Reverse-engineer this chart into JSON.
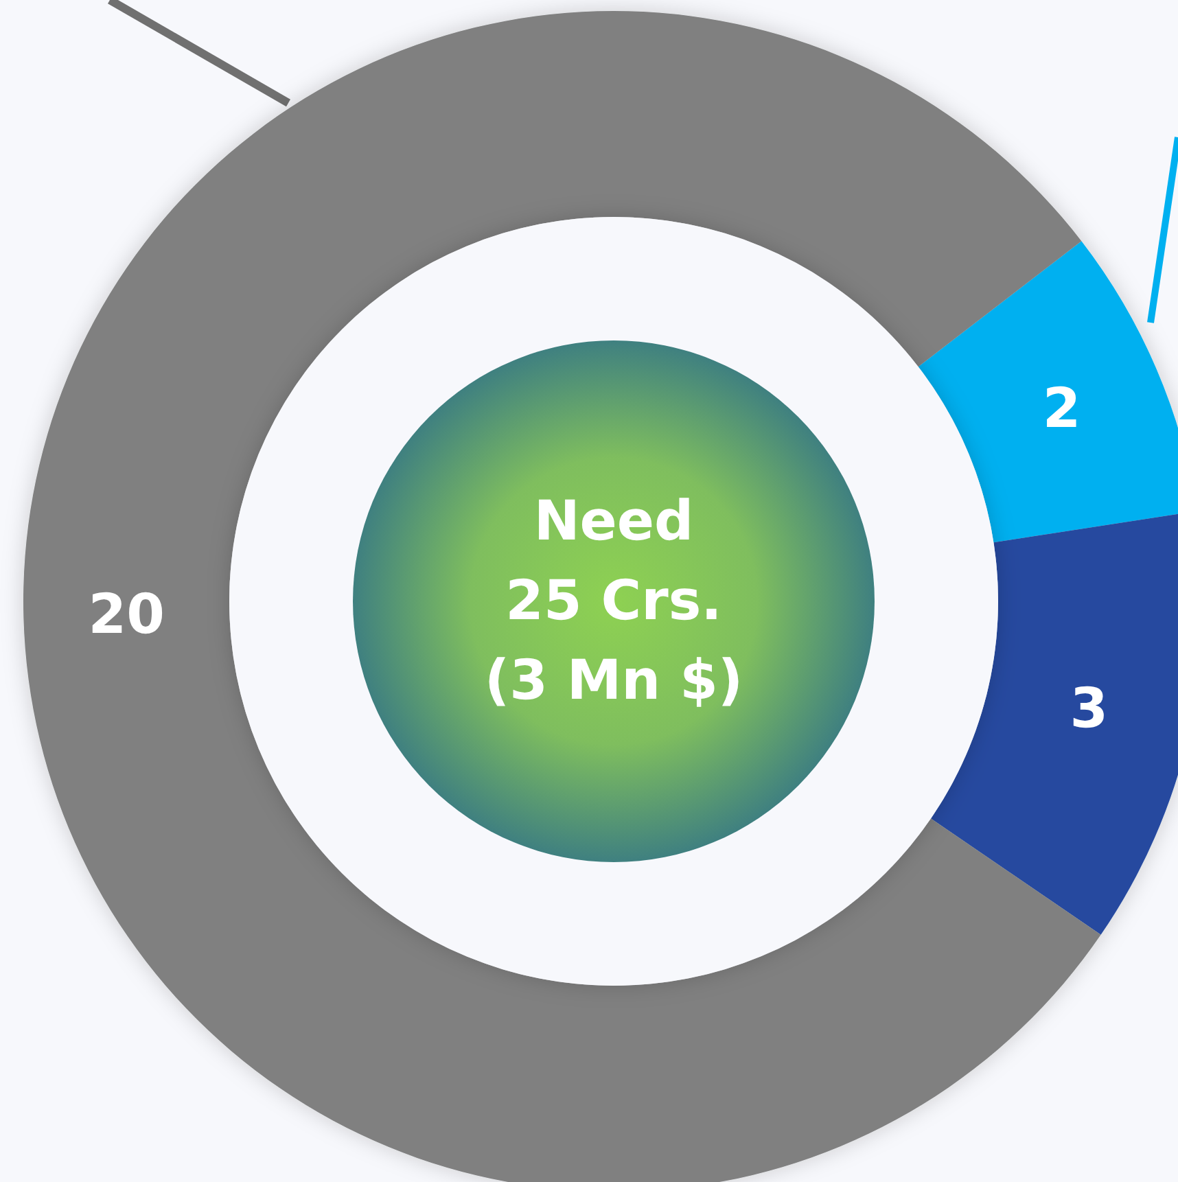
{
  "chart_data": {
    "type": "donut",
    "categories": [
      null,
      null,
      null
    ],
    "values": [
      2,
      3,
      20
    ],
    "colors": [
      "#00b0f0",
      "#254a9f",
      "#808080"
    ],
    "data_labels": true,
    "annotations": [
      "Need",
      "25 Crs.",
      "(3 Mn $)"
    ]
  }
}
